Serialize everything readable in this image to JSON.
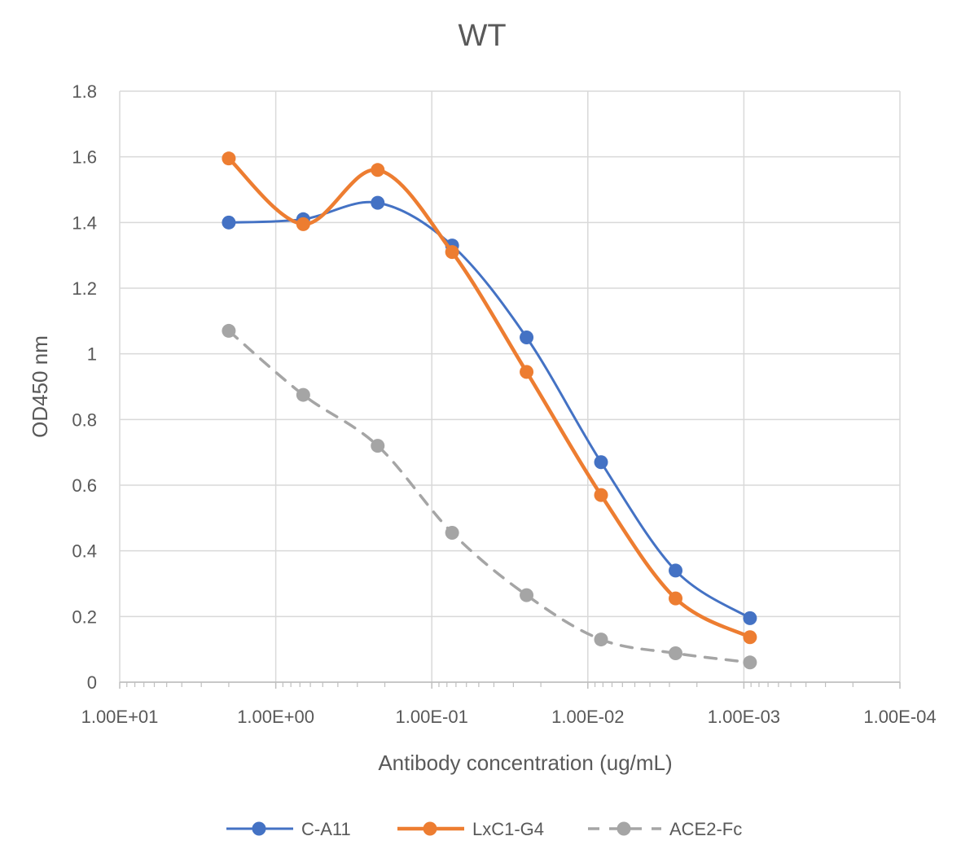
{
  "chart_data": {
    "type": "line",
    "title": "WT",
    "xlabel": "Antibody concentration (ug/mL)",
    "ylabel": "OD450 nm",
    "x_scale": "log",
    "x_reversed": true,
    "xlim": [
      10,
      0.0001
    ],
    "ylim": [
      0,
      1.8
    ],
    "y_ticks": [
      0,
      0.2,
      0.4,
      0.6,
      0.8,
      1,
      1.2,
      1.4,
      1.6,
      1.8
    ],
    "y_tick_labels": [
      "0",
      "0.2",
      "0.4",
      "0.6",
      "0.8",
      "1",
      "1.2",
      "1.4",
      "1.6",
      "1.8"
    ],
    "x_ticks": [
      10,
      1,
      0.1,
      0.01,
      0.001,
      0.0001
    ],
    "x_tick_labels": [
      "1.00E+01",
      "1.00E+00",
      "1.00E-01",
      "1.00E-02",
      "1.00E-03",
      "1.00E-04"
    ],
    "x": [
      2,
      0.6667,
      0.2222,
      0.0741,
      0.0247,
      0.00823,
      0.00274,
      0.000914
    ],
    "grid": true,
    "legend_position": "bottom",
    "series": [
      {
        "name": "C-A11",
        "color": "#4472C4",
        "dash": "solid",
        "smooth": true,
        "values": [
          1.4,
          1.41,
          1.46,
          1.33,
          1.05,
          0.67,
          0.34,
          0.195
        ]
      },
      {
        "name": "LxC1-G4",
        "color": "#ED7D31",
        "dash": "solid",
        "smooth": true,
        "values": [
          1.595,
          1.395,
          1.56,
          1.31,
          0.945,
          0.57,
          0.255,
          0.137
        ]
      },
      {
        "name": "ACE2-Fc",
        "color": "#A5A5A5",
        "dash": "dashed",
        "smooth": true,
        "values": [
          1.07,
          0.875,
          0.72,
          0.455,
          0.265,
          0.13,
          0.088,
          0.06
        ]
      }
    ]
  }
}
